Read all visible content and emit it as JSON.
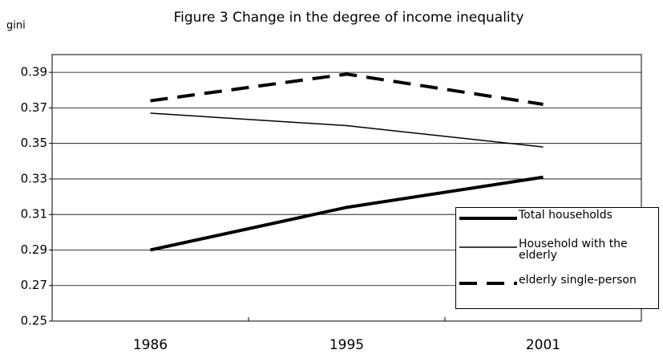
{
  "chart_data": {
    "type": "line",
    "title": "Figure 3 Change in the degree of income inequality",
    "y_label": "gini",
    "categories": [
      "1986",
      "1995",
      "2001"
    ],
    "series": [
      {
        "name": "Total households",
        "color": "#000000",
        "width": 4,
        "dash": false,
        "values": [
          0.29,
          0.314,
          0.331
        ]
      },
      {
        "name": "Household with the elderly",
        "color": "#000000",
        "width": 1.5,
        "dash": false,
        "values": [
          0.367,
          0.36,
          0.348
        ]
      },
      {
        "name": "elderly single-person",
        "color": "#000000",
        "width": 4,
        "dash": true,
        "values": [
          0.374,
          0.389,
          0.372
        ]
      }
    ],
    "ylim": [
      0.25,
      0.4
    ],
    "yticks": [
      0.25,
      0.27,
      0.29,
      0.31,
      0.33,
      0.35,
      0.37,
      0.39
    ],
    "grid": true
  }
}
